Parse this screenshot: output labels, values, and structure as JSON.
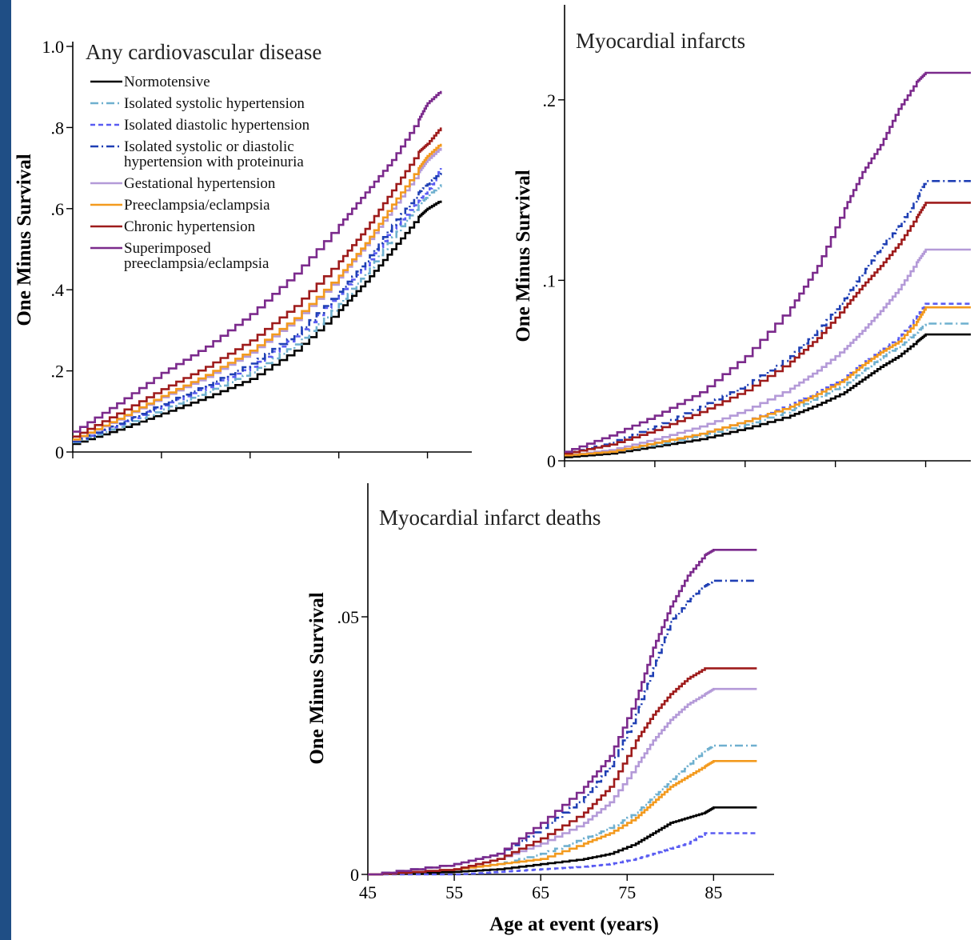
{
  "chart_data": [
    {
      "type": "line",
      "panel": "a",
      "title": "Any cardiovascular disease",
      "ylabel": "One Minus Survival",
      "xlabel": "",
      "xlim": [
        45,
        90
      ],
      "ylim": [
        0,
        1.0
      ],
      "yticks": [
        0,
        0.2,
        0.4,
        0.6,
        0.8,
        1.0
      ],
      "ytick_labels": [
        "0",
        ".2",
        ".4",
        ".6",
        ".8",
        "1.0"
      ],
      "xticks": [
        45,
        55,
        65,
        75,
        85
      ],
      "xtick_labels": [],
      "legend": "top-left",
      "series": [
        {
          "name": "Normotensive",
          "style": "normotensive",
          "x": [
            45,
            50,
            55,
            60,
            65,
            70,
            75,
            78,
            81,
            84,
            85,
            86.5
          ],
          "y": [
            0.02,
            0.055,
            0.095,
            0.135,
            0.18,
            0.25,
            0.35,
            0.42,
            0.5,
            0.58,
            0.6,
            0.62
          ]
        },
        {
          "name": "Isolated systolic hypertension",
          "style": "isolated_systolic",
          "x": [
            45,
            50,
            55,
            60,
            65,
            70,
            75,
            78,
            81,
            84,
            85,
            86.5
          ],
          "y": [
            0.024,
            0.062,
            0.105,
            0.148,
            0.196,
            0.265,
            0.365,
            0.44,
            0.53,
            0.61,
            0.63,
            0.66
          ]
        },
        {
          "name": "Isolated diastolic hypertension",
          "style": "isolated_diastolic",
          "x": [
            45,
            50,
            55,
            60,
            65,
            70,
            75,
            78,
            81,
            84,
            85,
            86.5
          ],
          "y": [
            0.026,
            0.068,
            0.115,
            0.16,
            0.21,
            0.285,
            0.39,
            0.46,
            0.55,
            0.62,
            0.64,
            0.7
          ]
        },
        {
          "name": "Isolated systolic or diastolic hypertension with proteinuria",
          "style": "proteinuria",
          "x": [
            45,
            50,
            55,
            60,
            65,
            70,
            75,
            78,
            81,
            84,
            85,
            86.5
          ],
          "y": [
            0.026,
            0.07,
            0.118,
            0.165,
            0.218,
            0.29,
            0.395,
            0.47,
            0.56,
            0.64,
            0.66,
            0.69
          ]
        },
        {
          "name": "Gestational hypertension",
          "style": "gestational",
          "x": [
            45,
            50,
            55,
            60,
            65,
            70,
            75,
            78,
            81,
            84,
            85,
            86.5
          ],
          "y": [
            0.03,
            0.08,
            0.135,
            0.185,
            0.245,
            0.325,
            0.43,
            0.51,
            0.6,
            0.69,
            0.72,
            0.75
          ]
        },
        {
          "name": "Preeclampsia/eclampsia",
          "style": "preeclampsia",
          "x": [
            45,
            50,
            55,
            60,
            65,
            70,
            75,
            78,
            81,
            84,
            85,
            86.5
          ],
          "y": [
            0.031,
            0.082,
            0.138,
            0.19,
            0.25,
            0.33,
            0.435,
            0.515,
            0.61,
            0.7,
            0.73,
            0.76
          ]
        },
        {
          "name": "Chronic hypertension",
          "style": "chronic",
          "x": [
            45,
            50,
            55,
            60,
            65,
            70,
            75,
            78,
            81,
            84,
            85,
            86.5
          ],
          "y": [
            0.038,
            0.095,
            0.155,
            0.21,
            0.275,
            0.36,
            0.47,
            0.55,
            0.645,
            0.74,
            0.76,
            0.8
          ]
        },
        {
          "name": "Superimposed preeclampsia/eclampsia",
          "style": "superimposed",
          "x": [
            45,
            50,
            55,
            60,
            65,
            70,
            75,
            78,
            81,
            84,
            85,
            86.5
          ],
          "y": [
            0.05,
            0.12,
            0.195,
            0.26,
            0.34,
            0.44,
            0.56,
            0.64,
            0.72,
            0.82,
            0.86,
            0.89
          ]
        }
      ]
    },
    {
      "type": "line",
      "panel": "b",
      "title": "Myocardial infarcts",
      "ylabel": "One Minus Survival",
      "xlabel": "",
      "xlim": [
        45,
        90
      ],
      "ylim": [
        0,
        0.25
      ],
      "yticks": [
        0,
        0.1,
        0.2
      ],
      "ytick_labels": [
        "0",
        ".1",
        ".2"
      ],
      "xticks": [
        45,
        55,
        65,
        75,
        85
      ],
      "xtick_labels": [],
      "series": [
        {
          "name": "Normotensive",
          "style": "normotensive",
          "x": [
            45,
            50,
            55,
            60,
            65,
            70,
            73,
            76,
            78,
            80,
            82,
            84,
            85,
            90
          ],
          "y": [
            0.002,
            0.004,
            0.008,
            0.012,
            0.018,
            0.025,
            0.031,
            0.038,
            0.045,
            0.052,
            0.058,
            0.066,
            0.07,
            0.07
          ]
        },
        {
          "name": "Isolated systolic hypertension",
          "style": "isolated_systolic",
          "x": [
            45,
            50,
            55,
            60,
            65,
            70,
            73,
            76,
            78,
            80,
            82,
            84,
            85,
            90
          ],
          "y": [
            0.003,
            0.005,
            0.009,
            0.014,
            0.02,
            0.028,
            0.035,
            0.042,
            0.05,
            0.057,
            0.063,
            0.071,
            0.076,
            0.076
          ]
        },
        {
          "name": "Isolated diastolic hypertension",
          "style": "isolated_diastolic",
          "x": [
            45,
            50,
            55,
            60,
            65,
            70,
            73,
            76,
            78,
            80,
            82,
            84,
            85,
            90
          ],
          "y": [
            0.003,
            0.005,
            0.01,
            0.015,
            0.022,
            0.031,
            0.038,
            0.046,
            0.054,
            0.061,
            0.068,
            0.08,
            0.087,
            0.087
          ]
        },
        {
          "name": "Isolated systolic or diastolic hypertension with proteinuria",
          "style": "proteinuria",
          "x": [
            45,
            50,
            55,
            60,
            65,
            70,
            73,
            76,
            78,
            80,
            82,
            84,
            85,
            90
          ],
          "y": [
            0.004,
            0.01,
            0.019,
            0.03,
            0.042,
            0.058,
            0.072,
            0.09,
            0.104,
            0.118,
            0.13,
            0.145,
            0.155,
            0.155
          ]
        },
        {
          "name": "Gestational hypertension",
          "style": "gestational",
          "x": [
            45,
            50,
            55,
            60,
            65,
            70,
            73,
            76,
            78,
            80,
            82,
            84,
            85,
            90
          ],
          "y": [
            0.003,
            0.006,
            0.012,
            0.019,
            0.028,
            0.04,
            0.05,
            0.062,
            0.072,
            0.083,
            0.095,
            0.11,
            0.117,
            0.117
          ]
        },
        {
          "name": "Preeclampsia/eclampsia",
          "style": "preeclampsia",
          "x": [
            45,
            50,
            55,
            60,
            65,
            70,
            73,
            76,
            78,
            80,
            82,
            84,
            85,
            90
          ],
          "y": [
            0.003,
            0.005,
            0.01,
            0.015,
            0.022,
            0.03,
            0.037,
            0.045,
            0.053,
            0.06,
            0.066,
            0.077,
            0.085,
            0.085
          ]
        },
        {
          "name": "Chronic hypertension",
          "style": "chronic",
          "x": [
            45,
            50,
            55,
            60,
            65,
            70,
            73,
            76,
            78,
            80,
            82,
            84,
            85,
            90
          ],
          "y": [
            0.004,
            0.009,
            0.017,
            0.027,
            0.039,
            0.055,
            0.068,
            0.085,
            0.097,
            0.108,
            0.12,
            0.135,
            0.143,
            0.143
          ]
        },
        {
          "name": "Superimposed preeclampsia/eclampsia",
          "style": "superimposed",
          "x": [
            45,
            50,
            55,
            60,
            65,
            70,
            73,
            76,
            78,
            80,
            82,
            84,
            85,
            90
          ],
          "y": [
            0.005,
            0.014,
            0.025,
            0.038,
            0.058,
            0.085,
            0.108,
            0.14,
            0.16,
            0.175,
            0.195,
            0.21,
            0.215,
            0.215
          ]
        }
      ]
    },
    {
      "type": "line",
      "panel": "c",
      "title": "Myocardial infarct deaths",
      "ylabel": "One Minus Survival",
      "xlabel": "Age at event (years)",
      "xlim": [
        45,
        92
      ],
      "ylim": [
        0,
        0.075
      ],
      "yticks": [
        0,
        0.05
      ],
      "ytick_labels": [
        "0",
        ".05"
      ],
      "xticks": [
        45,
        55,
        65,
        75,
        85
      ],
      "xtick_labels": [
        "45",
        "55",
        "65",
        "75",
        "85"
      ],
      "series": [
        {
          "name": "Normotensive",
          "style": "normotensive",
          "x": [
            45,
            55,
            60,
            65,
            70,
            73,
            76,
            78,
            80,
            82,
            84,
            85,
            90
          ],
          "y": [
            0.0,
            0.0005,
            0.001,
            0.002,
            0.003,
            0.004,
            0.006,
            0.008,
            0.01,
            0.011,
            0.012,
            0.013,
            0.013
          ]
        },
        {
          "name": "Isolated systolic hypertension",
          "style": "isolated_systolic",
          "x": [
            45,
            55,
            60,
            65,
            70,
            73,
            76,
            78,
            80,
            82,
            84,
            85,
            90
          ],
          "y": [
            0.0,
            0.001,
            0.002,
            0.004,
            0.007,
            0.009,
            0.012,
            0.015,
            0.018,
            0.021,
            0.024,
            0.025,
            0.025
          ]
        },
        {
          "name": "Isolated diastolic hypertension",
          "style": "isolated_diastolic",
          "x": [
            45,
            55,
            60,
            65,
            70,
            73,
            76,
            78,
            80,
            82,
            84,
            85,
            90
          ],
          "y": [
            0.0,
            0.0,
            0.0005,
            0.001,
            0.0015,
            0.002,
            0.003,
            0.004,
            0.005,
            0.006,
            0.008,
            0.008,
            0.008
          ]
        },
        {
          "name": "Isolated systolic or diastolic hypertension with proteinuria",
          "style": "proteinuria",
          "x": [
            45,
            55,
            60,
            65,
            70,
            73,
            76,
            78,
            80,
            82,
            84,
            85,
            90
          ],
          "y": [
            0.0,
            0.002,
            0.004,
            0.009,
            0.015,
            0.021,
            0.031,
            0.04,
            0.049,
            0.053,
            0.056,
            0.057,
            0.057
          ]
        },
        {
          "name": "Gestational hypertension",
          "style": "gestational",
          "x": [
            45,
            55,
            60,
            65,
            70,
            73,
            76,
            78,
            80,
            82,
            84,
            85,
            90
          ],
          "y": [
            0.0,
            0.001,
            0.003,
            0.006,
            0.01,
            0.014,
            0.021,
            0.026,
            0.03,
            0.033,
            0.035,
            0.036,
            0.036
          ]
        },
        {
          "name": "Preeclampsia/eclampsia",
          "style": "preeclampsia",
          "x": [
            45,
            55,
            60,
            65,
            70,
            73,
            76,
            78,
            80,
            82,
            84,
            85,
            90
          ],
          "y": [
            0.0,
            0.001,
            0.002,
            0.003,
            0.006,
            0.008,
            0.011,
            0.014,
            0.017,
            0.019,
            0.021,
            0.022,
            0.022
          ]
        },
        {
          "name": "Chronic hypertension",
          "style": "chronic",
          "x": [
            45,
            55,
            60,
            65,
            70,
            73,
            76,
            78,
            80,
            82,
            84,
            85,
            90
          ],
          "y": [
            0.0,
            0.001,
            0.003,
            0.007,
            0.012,
            0.017,
            0.026,
            0.031,
            0.035,
            0.038,
            0.04,
            0.04,
            0.04
          ]
        },
        {
          "name": "Superimposed preeclampsia/eclampsia",
          "style": "superimposed",
          "x": [
            45,
            55,
            60,
            65,
            70,
            73,
            76,
            78,
            80,
            82,
            84,
            85,
            90
          ],
          "y": [
            0.0,
            0.002,
            0.004,
            0.01,
            0.017,
            0.023,
            0.034,
            0.044,
            0.052,
            0.058,
            0.062,
            0.063,
            0.063
          ]
        }
      ]
    }
  ],
  "legend": {
    "entries": [
      {
        "style": "normotensive",
        "lines": [
          "Normotensive"
        ]
      },
      {
        "style": "isolated_systolic",
        "lines": [
          "Isolated systolic hypertension"
        ]
      },
      {
        "style": "isolated_diastolic",
        "lines": [
          "Isolated diastolic hypertension"
        ]
      },
      {
        "style": "proteinuria",
        "lines": [
          "Isolated systolic or diastolic",
          "hypertension with proteinuria"
        ]
      },
      {
        "style": "gestational",
        "lines": [
          "Gestational hypertension"
        ]
      },
      {
        "style": "preeclampsia",
        "lines": [
          "Preeclampsia/eclampsia"
        ]
      },
      {
        "style": "chronic",
        "lines": [
          "Chronic hypertension"
        ]
      },
      {
        "style": "superimposed",
        "lines": [
          "Superimposed",
          "preeclampsia/eclampsia"
        ]
      }
    ]
  },
  "series_styles": {
    "normotensive": {
      "color": "#000000",
      "dash": "solid"
    },
    "isolated_systolic": {
      "color": "#6fb0cf",
      "dash": "dash-dot"
    },
    "isolated_diastolic": {
      "color": "#5a5cf2",
      "dash": "short-dash"
    },
    "proteinuria": {
      "color": "#1f3fb4",
      "dash": "dash-dot"
    },
    "gestational": {
      "color": "#b49ad8",
      "dash": "solid"
    },
    "preeclampsia": {
      "color": "#f39a1e",
      "dash": "solid"
    },
    "chronic": {
      "color": "#9e1b1b",
      "dash": "solid"
    },
    "superimposed": {
      "color": "#7b2a8c",
      "dash": "solid"
    }
  },
  "colors": {
    "accent_bar": "#1f4e85"
  }
}
